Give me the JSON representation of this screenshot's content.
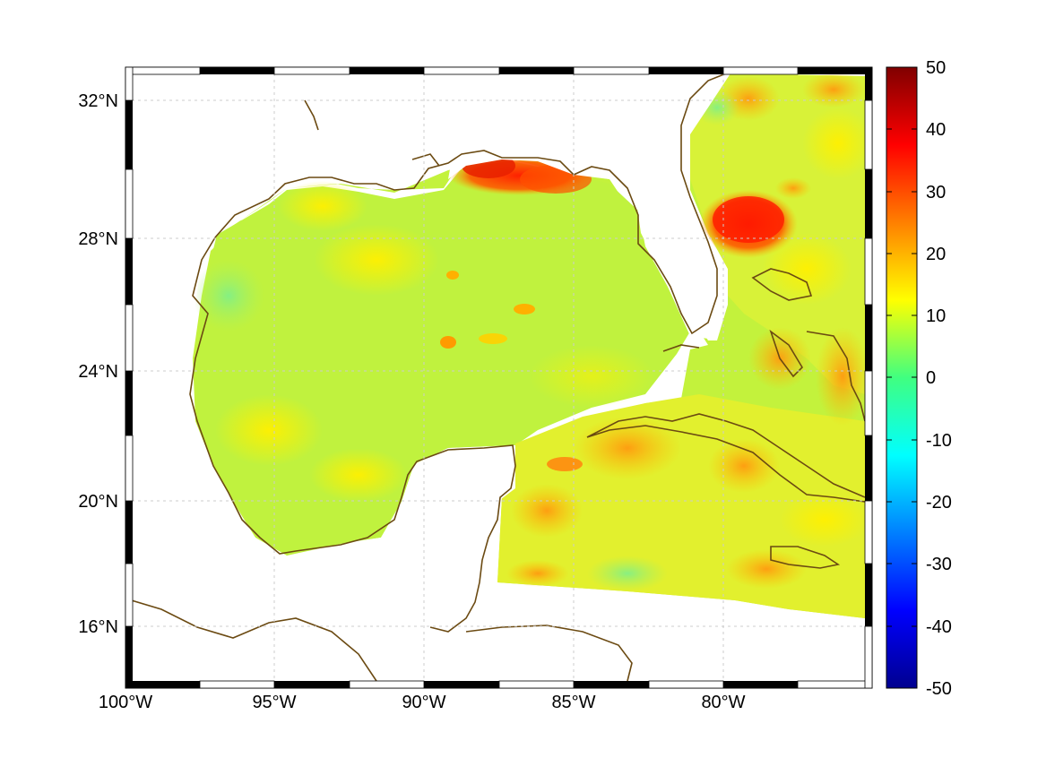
{
  "map": {
    "longitude_ticks": [
      "100°W",
      "95°W",
      "90°W",
      "85°W",
      "80°W"
    ],
    "latitude_ticks": [
      "32°N",
      "28°N",
      "24°N",
      "20°N",
      "16°N"
    ],
    "lon_range": [
      -100,
      -75
    ],
    "lat_range": [
      14.3,
      33
    ]
  },
  "colorbar": {
    "ticks": [
      "50",
      "40",
      "30",
      "20",
      "10",
      "0",
      "-10",
      "-20",
      "-30",
      "-40",
      "-50"
    ],
    "range": [
      -50,
      50
    ],
    "colormap": "jet"
  },
  "colors": {
    "coastline": "#6b4a12",
    "field_base": "#c6f53a",
    "land_mask": "#ffffff"
  }
}
